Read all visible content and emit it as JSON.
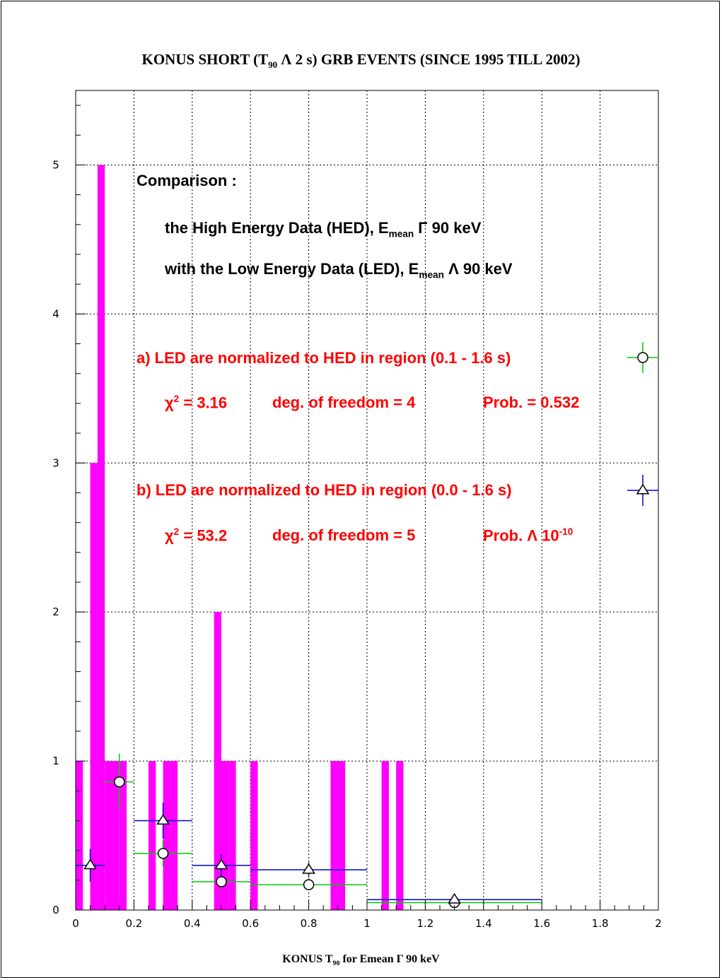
{
  "title": {
    "pre": "KONUS SHORT (T",
    "sub": "90",
    "post": " Λ 2 s) GRB EVENTS (SINCE 1995 TILL 2002)"
  },
  "xlabel": {
    "pre": "KONUS T",
    "sub": "90",
    "post": " for Emean Γ 90 keV"
  },
  "annotations": {
    "comparison": "Comparison :",
    "hed_pre": "the High Energy Data (HED), E",
    "hed_sub": "mean",
    "hed_post": " Γ 90 keV",
    "led_pre": "with the Low Energy Data (LED), E",
    "led_sub": "mean",
    "led_post": " Λ 90 keV",
    "a_line": "a) LED are normalized to HED in region (0.1 - 1.6 s)",
    "a_chi_pre": "χ",
    "a_chi_sup": "2",
    "a_chi_post": " = 3.16",
    "a_dof": "deg. of freedom = 4",
    "a_prob": "Prob. = 0.532",
    "b_line": "b) LED are normalized to HED in region (0.0 - 1.6 s)",
    "b_chi_pre": "χ",
    "b_chi_sup": "2",
    "b_chi_post": " = 53.2",
    "b_dof": "deg. of freedom = 5",
    "b_prob_pre": "Prob. Λ 10",
    "b_prob_sup": "-10"
  },
  "colors": {
    "hist": "#ff00ff",
    "green": "#00cc00",
    "blue": "#0000cc",
    "red": "#ff0000"
  },
  "chart_data": {
    "type": "bar",
    "xlim": [
      0,
      2
    ],
    "ylim": [
      0,
      5.5
    ],
    "grid": true,
    "x_ticks": [
      "0",
      "0.2",
      "0.4",
      "0.6",
      "0.8",
      "1",
      "1.2",
      "1.4",
      "1.6",
      "1.8",
      "2"
    ],
    "y_ticks": [
      "0",
      "1",
      "2",
      "3",
      "4",
      "5"
    ],
    "histogram": {
      "name": "HED",
      "bin_width": 0.025,
      "bin_starts": [
        0.0,
        0.025,
        0.05,
        0.075,
        0.1,
        0.125,
        0.15,
        0.175,
        0.2,
        0.225,
        0.25,
        0.275,
        0.3,
        0.325,
        0.35,
        0.375,
        0.4,
        0.425,
        0.45,
        0.475,
        0.5,
        0.525,
        0.55,
        0.575,
        0.6,
        0.625,
        0.65,
        0.675,
        0.7,
        0.725,
        0.75,
        0.775,
        0.8,
        0.825,
        0.85,
        0.875,
        0.9,
        0.925,
        0.95,
        0.975,
        1.0,
        1.025,
        1.05,
        1.075,
        1.1
      ],
      "values": [
        1,
        0,
        3,
        5,
        1,
        1,
        1,
        0,
        0,
        0,
        1,
        0,
        1,
        1,
        0,
        0,
        0,
        0,
        0,
        2,
        1,
        1,
        0,
        0,
        1,
        0,
        0,
        0,
        0,
        0,
        0,
        0,
        0,
        0,
        0,
        1,
        1,
        0,
        0,
        0,
        0,
        0,
        1,
        0,
        1
      ]
    },
    "series": [
      {
        "name": "a",
        "marker": "circle",
        "color": "#00cc00",
        "points": [
          {
            "x": 0.15,
            "y": 0.86,
            "xlo": 0.1,
            "xhi": 0.2,
            "ylo": 0.68,
            "yhi": 1.05
          },
          {
            "x": 0.3,
            "y": 0.38,
            "xlo": 0.2,
            "xhi": 0.4,
            "ylo": 0.29,
            "yhi": 0.47
          },
          {
            "x": 0.5,
            "y": 0.19,
            "xlo": 0.4,
            "xhi": 0.6,
            "ylo": 0.14,
            "yhi": 0.24
          },
          {
            "x": 0.8,
            "y": 0.17,
            "xlo": 0.6,
            "xhi": 1.0,
            "ylo": 0.14,
            "yhi": 0.21
          },
          {
            "x": 1.3,
            "y": 0.05,
            "xlo": 1.0,
            "xhi": 1.6,
            "ylo": 0.04,
            "yhi": 0.06
          }
        ]
      },
      {
        "name": "b",
        "marker": "triangle",
        "color": "#0000cc",
        "points": [
          {
            "x": 0.05,
            "y": 0.3,
            "xlo": 0.0,
            "xhi": 0.1,
            "ylo": 0.19,
            "yhi": 0.41
          },
          {
            "x": 0.3,
            "y": 0.6,
            "xlo": 0.2,
            "xhi": 0.4,
            "ylo": 0.48,
            "yhi": 0.72
          },
          {
            "x": 0.5,
            "y": 0.3,
            "xlo": 0.4,
            "xhi": 0.6,
            "ylo": 0.23,
            "yhi": 0.37
          },
          {
            "x": 0.8,
            "y": 0.27,
            "xlo": 0.6,
            "xhi": 1.0,
            "ylo": 0.22,
            "yhi": 0.32
          },
          {
            "x": 1.3,
            "y": 0.07,
            "xlo": 1.0,
            "xhi": 1.6,
            "ylo": 0.05,
            "yhi": 0.09
          }
        ]
      }
    ]
  }
}
